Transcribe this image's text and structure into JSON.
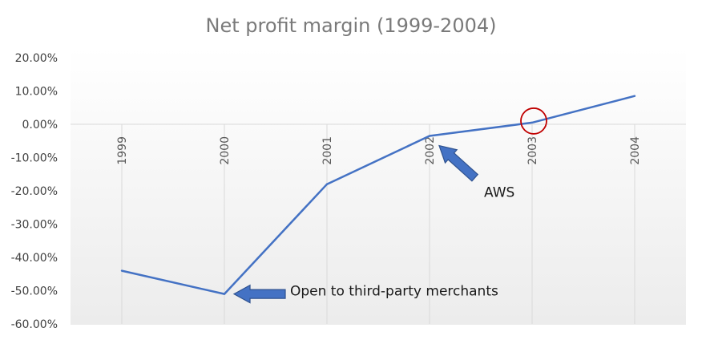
{
  "chart_data": {
    "type": "line",
    "title": "Net profit margin (1999-2004)",
    "xlabel": "",
    "ylabel": "",
    "categories": [
      "1999",
      "2000",
      "2001",
      "2002",
      "2003",
      "2004"
    ],
    "series": [
      {
        "values": [
          -44.0,
          -51.0,
          -18.0,
          -3.5,
          0.5,
          8.5
        ],
        "color": "#4472c4"
      }
    ],
    "ylim": [
      -60,
      20
    ],
    "yticks": [
      20,
      10,
      0,
      -10,
      -20,
      -30,
      -40,
      -50,
      -60
    ],
    "ytick_labels": [
      "20.00%",
      "10.00%",
      "0.00%",
      "-10.00%",
      "-20.00%",
      "-30.00%",
      "-40.00%",
      "-50.00%",
      "-60.00%"
    ],
    "grid": "vertical",
    "legend": "none",
    "annotations": [
      {
        "text": "Open to third-party merchants",
        "target_category": "2000",
        "marker": "arrow"
      },
      {
        "text": "AWS",
        "target_category": "2002",
        "marker": "arrow"
      },
      {
        "text": "",
        "target_category": "2003",
        "marker": "circle"
      }
    ],
    "colors": {
      "line": "#4472c4",
      "arrow_fill": "#4472c4",
      "arrow_stroke": "#2f528f",
      "circle": "#c00000",
      "grid": "#d9d9d9",
      "title": "#7a7a7a"
    }
  }
}
